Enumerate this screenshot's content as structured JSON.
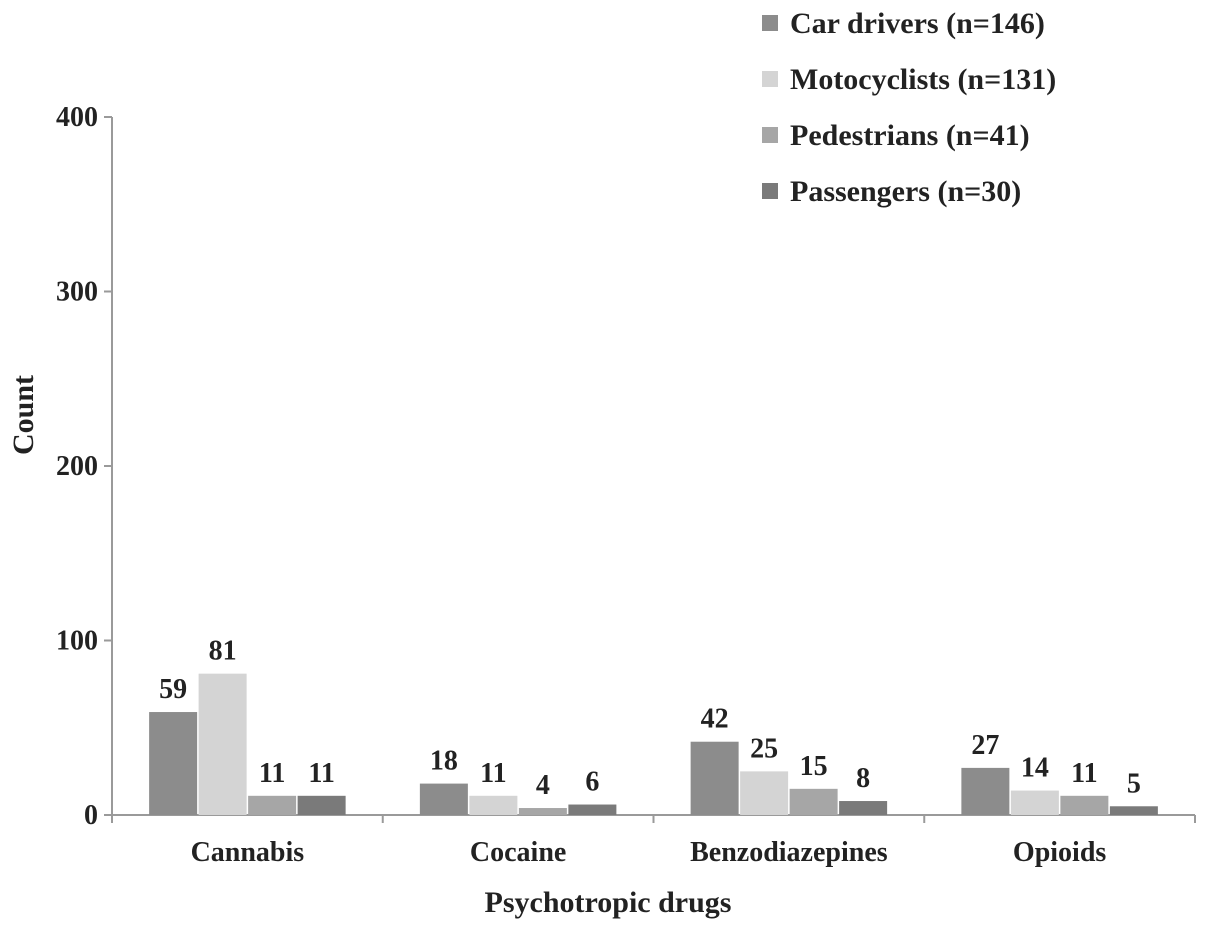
{
  "chart_data": {
    "type": "bar",
    "xlabel": "Psychotropic drugs",
    "ylabel": "Count",
    "ylim": [
      0,
      400
    ],
    "yticks": [
      0,
      100,
      200,
      300,
      400
    ],
    "categories": [
      "Cannabis",
      "Cocaine",
      "Benzodiazepines",
      "Opioids"
    ],
    "series": [
      {
        "name": "Car drivers (n=146)",
        "values": [
          59,
          18,
          42,
          27
        ],
        "color": "#8c8c8c"
      },
      {
        "name": "Motocyclists (n=131)",
        "values": [
          81,
          11,
          25,
          14
        ],
        "color": "#d4d4d4"
      },
      {
        "name": "Pedestrians (n=41)",
        "values": [
          11,
          4,
          15,
          11
        ],
        "color": "#a6a6a6"
      },
      {
        "name": "Passengers (n=30)",
        "values": [
          11,
          6,
          8,
          5
        ],
        "color": "#7a7a7a"
      }
    ],
    "legend_position": "top-right",
    "grid": false
  }
}
